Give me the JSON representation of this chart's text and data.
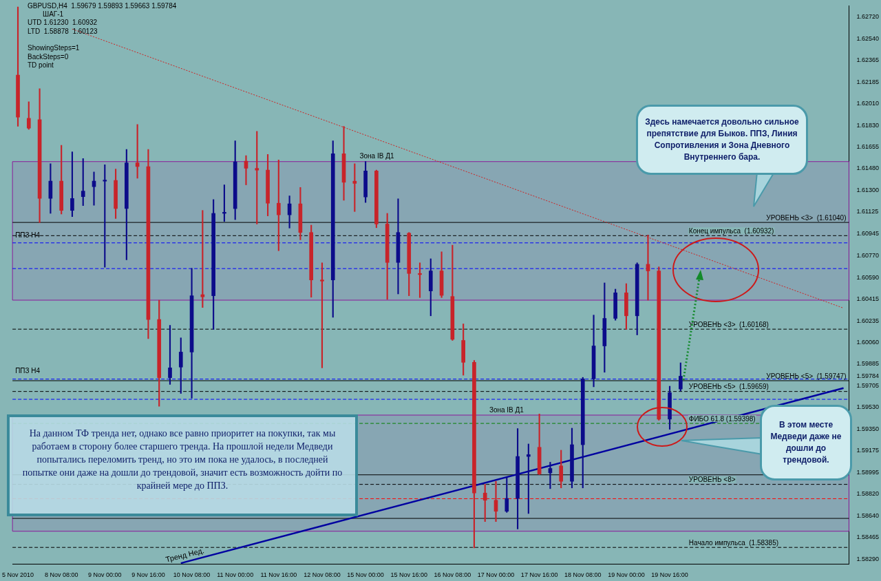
{
  "chart_data": {
    "type": "candlestick",
    "title": "GBPUSD,H4  1.59679 1.59893 1.59663 1.59784",
    "categories": [
      "5 Nov 2010",
      null,
      null,
      null,
      "8 Nov 08:00",
      null,
      null,
      null,
      "9 Nov 00:00",
      null,
      null,
      null,
      "9 Nov 16:00",
      null,
      null,
      null,
      "10 Nov 08:00",
      null,
      null,
      null,
      "11 Nov 00:00",
      null,
      null,
      null,
      "11 Nov 16:00",
      null,
      null,
      null,
      "12 Nov 08:00",
      null,
      null,
      null,
      "15 Nov 00:00",
      null,
      null,
      null,
      "15 Nov 16:00",
      null,
      null,
      null,
      "16 Nov 08:00",
      null,
      null,
      null,
      "17 Nov 00:00",
      null,
      null,
      null,
      "17 Nov 16:00",
      null,
      null,
      null,
      "18 Nov 08:00",
      null,
      null,
      null,
      "19 Nov 00:00",
      null,
      null,
      null,
      "19 Nov 16:00",
      null,
      null,
      null,
      null,
      null,
      null,
      null,
      null,
      null,
      null,
      null,
      null,
      null,
      null,
      null,
      null
    ],
    "ohlc": [
      [
        1.62244,
        1.628,
        1.61825,
        1.619
      ],
      [
        1.61891,
        1.62026,
        1.61801,
        1.6181
      ],
      [
        1.61879,
        1.62133,
        1.61039,
        1.61236
      ],
      [
        1.61236,
        1.6152,
        1.61114,
        1.61377
      ],
      [
        1.61377,
        1.6167,
        1.61108,
        1.61138
      ],
      [
        1.61138,
        1.61616,
        1.61087,
        1.61236
      ],
      [
        1.61251,
        1.61562,
        1.61177,
        1.61296
      ],
      [
        1.61332,
        1.61452,
        1.6118,
        1.61377
      ],
      [
        1.61377,
        1.61511,
        1.60674,
        1.61386
      ],
      [
        1.61383,
        1.61476,
        1.61072,
        1.61153
      ],
      [
        1.61153,
        1.61637,
        1.60734,
        1.61526
      ],
      [
        1.61526,
        1.6184,
        1.61401,
        1.61496
      ],
      [
        1.61496,
        1.61637,
        1.60091,
        1.60247
      ],
      [
        1.60247,
        1.60405,
        1.59538,
        1.59771
      ],
      [
        1.59771,
        1.60199,
        1.59717,
        1.59852
      ],
      [
        1.59858,
        1.60097,
        1.59643,
        1.59981
      ],
      [
        1.59981,
        1.60665,
        1.59604,
        1.60441
      ],
      [
        1.6045,
        1.61138,
        1.60345,
        1.60432
      ],
      [
        1.60441,
        1.61227,
        1.60166,
        1.61114
      ],
      [
        1.61114,
        1.61347,
        1.61048,
        1.61123
      ],
      [
        1.61153,
        1.61706,
        1.61063,
        1.61535
      ],
      [
        1.61541,
        1.61586,
        1.61347,
        1.61482
      ],
      [
        1.61482,
        1.61784,
        1.61027,
        1.61467
      ],
      [
        1.61467,
        1.61595,
        1.61093,
        1.61197
      ],
      [
        1.61197,
        1.6155,
        1.60809,
        1.61102
      ],
      [
        1.61102,
        1.61257,
        1.60994,
        1.61192
      ],
      [
        1.61192,
        1.61326,
        1.60898,
        1.60958
      ],
      [
        1.60958,
        1.61018,
        1.60429,
        1.6057
      ],
      [
        1.6057,
        1.6071,
        1.59852,
        1.60561
      ],
      [
        1.6057,
        1.61706,
        1.60265,
        1.61601
      ],
      [
        1.61601,
        1.61825,
        1.61221,
        1.61368
      ],
      [
        1.61377,
        1.6152,
        1.61129,
        1.61359
      ],
      [
        1.61248,
        1.61538,
        1.61203,
        1.61461
      ],
      [
        1.61461,
        1.61467,
        1.60997,
        1.61027
      ],
      [
        1.61027,
        1.61114,
        1.60411,
        1.60713
      ],
      [
        1.60713,
        1.61233,
        1.60456,
        1.60958
      ],
      [
        1.60952,
        1.60958,
        1.60441,
        1.60623
      ],
      [
        1.60623,
        1.6071,
        1.60426,
        1.60614
      ],
      [
        1.6048,
        1.60743,
        1.60277,
        1.60644
      ],
      [
        1.60644,
        1.608,
        1.60426,
        1.60444
      ],
      [
        1.60435,
        1.60854,
        1.60076,
        1.60085
      ],
      [
        1.60076,
        1.60211,
        1.59792,
        1.59897
      ],
      [
        1.59897,
        1.59912,
        1.58381,
        1.58829
      ],
      [
        1.58829,
        1.58901,
        1.58596,
        1.5877
      ],
      [
        1.5877,
        1.58925,
        1.58596,
        1.5868
      ],
      [
        1.5868,
        1.58955,
        1.58671,
        1.58785
      ],
      [
        1.58785,
        1.59356,
        1.58536,
        1.59128
      ],
      [
        1.59128,
        1.5923,
        1.58662,
        1.59143
      ],
      [
        1.59203,
        1.59475,
        1.58979,
        1.58985
      ],
      [
        1.58994,
        1.59081,
        1.58865,
        1.5903
      ],
      [
        1.59051,
        1.59179,
        1.58871,
        1.58925
      ],
      [
        1.58925,
        1.59359,
        1.58871,
        1.59224
      ],
      [
        1.59224,
        1.59774,
        1.58871,
        1.59762
      ],
      [
        1.59762,
        1.60283,
        1.59697,
        1.60031
      ],
      [
        1.60031,
        1.60546,
        1.59816,
        1.60256
      ],
      [
        1.60256,
        1.60495,
        1.60241,
        1.60465
      ],
      [
        1.60465,
        1.6054,
        1.60166,
        1.60277
      ],
      [
        1.60277,
        1.6071,
        1.60121,
        1.60698
      ],
      [
        1.60698,
        1.60937,
        1.60405,
        1.60644
      ],
      [
        1.60644,
        1.60677,
        1.59424,
        1.59433
      ],
      [
        1.59433,
        1.59702,
        1.5935,
        1.59649
      ],
      [
        1.59679,
        1.59893,
        1.59663,
        1.59784
      ],
      null,
      null,
      null,
      null,
      null,
      null,
      null,
      null,
      null,
      null,
      null,
      null,
      null,
      null,
      null
    ],
    "colors": [
      "#c8242a",
      "#c8242a",
      "#c8242a",
      "#0c0c8a",
      "#c8242a",
      "#0c0c8a",
      "#0c0c8a",
      "#0c0c8a",
      "#0c0c8a",
      "#c8242a",
      "#0c0c8a",
      "#c8242a",
      "#c8242a",
      "#c8242a",
      "#0c0c8a",
      "#0c0c8a",
      "#0c0c8a",
      "#c8242a",
      "#0c0c8a",
      "#0c0c8a",
      "#0c0c8a",
      "#c8242a",
      "#c8242a",
      "#c8242a",
      "#c8242a",
      "#0c0c8a",
      "#c8242a",
      "#c8242a",
      "#c8242a",
      "#0c0c8a",
      "#c8242a",
      "#c8242a",
      "#0c0c8a",
      "#c8242a",
      "#c8242a",
      "#0c0c8a",
      "#c8242a",
      "#c8242a",
      "#0c0c8a",
      "#c8242a",
      "#c8242a",
      "#c8242a",
      "#c8242a",
      "#c8242a",
      "#c8242a",
      "#0c0c8a",
      "#0c0c8a",
      "#0c0c8a",
      "#c8242a",
      "#0c0c8a",
      "#c8242a",
      "#0c0c8a",
      "#0c0c8a",
      "#0c0c8a",
      "#0c0c8a",
      "#0c0c8a",
      "#c8242a",
      "#0c0c8a",
      "#c8242a",
      "#c8242a",
      "#0c0c8a",
      "#0c0c8a",
      null,
      null,
      null,
      null,
      null,
      null,
      null,
      null,
      null,
      null,
      null,
      null,
      null,
      null,
      null
    ],
    "series": [
      {
        "type": "line",
        "color": "#0000a0",
        "line_style": "solid",
        "values": [
          null,
          null,
          null,
          null,
          null,
          null,
          null,
          null,
          null,
          null,
          null,
          null,
          null,
          null,
          null,
          1.58256,
          null,
          null,
          null,
          null,
          null,
          null,
          null,
          null,
          null,
          null,
          null,
          null,
          null,
          null,
          null,
          null,
          null,
          null,
          null,
          null,
          null,
          null,
          null,
          null,
          null,
          null,
          null,
          null,
          null,
          null,
          null,
          null,
          null,
          null,
          null,
          null,
          null,
          null,
          null,
          null,
          null,
          null,
          null,
          null,
          null,
          null,
          null,
          null,
          null,
          null,
          null,
          null,
          null,
          null,
          null,
          null,
          null,
          null,
          null,
          null,
          1.59687
        ]
      },
      {
        "type": "line",
        "color": "#d02020",
        "line_style": "dotted",
        "values": [
          null,
          null,
          null,
          null,
          null,
          1.6262,
          null,
          null,
          null,
          null,
          null,
          null,
          null,
          null,
          null,
          null,
          null,
          null,
          null,
          null,
          null,
          null,
          null,
          null,
          null,
          null,
          null,
          null,
          null,
          null,
          null,
          null,
          null,
          null,
          null,
          null,
          null,
          null,
          null,
          null,
          null,
          null,
          null,
          null,
          null,
          null,
          null,
          null,
          null,
          null,
          null,
          null,
          null,
          null,
          null,
          null,
          null,
          null,
          null,
          null,
          null,
          null,
          null,
          null,
          null,
          null,
          null,
          null,
          null,
          null,
          null,
          null,
          null,
          null,
          null,
          null,
          1.6034
        ]
      }
    ],
    "ylim": [
      1.5825,
      1.6281
    ],
    "yticks": [
      {
        "value": 1.6272,
        "label": "1.62720"
      },
      {
        "value": 1.6254,
        "label": "1.62540"
      },
      {
        "value": 1.62365,
        "label": "1.62365"
      },
      {
        "value": 1.62185,
        "label": "1.62185"
      },
      {
        "value": 1.6201,
        "label": "1.62010"
      },
      {
        "value": 1.6183,
        "label": "1.61830"
      },
      {
        "value": 1.61655,
        "label": "1.61655"
      },
      {
        "value": 1.6148,
        "label": "1.61480"
      },
      {
        "value": 1.613,
        "label": "1.61300"
      },
      {
        "value": 1.61125,
        "label": "1.61125"
      },
      {
        "value": 1.60945,
        "label": "1.60945"
      },
      {
        "value": 1.6077,
        "label": "1.60770"
      },
      {
        "value": 1.6059,
        "label": "1.60590"
      },
      {
        "value": 1.60415,
        "label": "1.60415"
      },
      {
        "value": 1.60235,
        "label": "1.60235"
      },
      {
        "value": 1.6006,
        "label": "1.60060"
      },
      {
        "value": 1.59885,
        "label": "1.59885"
      },
      {
        "value": 1.59784,
        "label": "1.59784"
      },
      {
        "value": 1.59705,
        "label": "1.59705"
      },
      {
        "value": 1.5953,
        "label": "1.59530"
      },
      {
        "value": 1.5935,
        "label": "1.59350"
      },
      {
        "value": 1.59175,
        "label": "1.59175"
      },
      {
        "value": 1.58995,
        "label": "1.58995"
      },
      {
        "value": 1.5882,
        "label": "1.58820"
      },
      {
        "value": 1.5864,
        "label": "1.58640"
      },
      {
        "value": 1.58465,
        "label": "1.58465"
      },
      {
        "value": 1.5829,
        "label": "1.58290"
      }
    ],
    "grid": false,
    "legend": false,
    "ref_lines": [
      {
        "axis": "y",
        "value": 1.6104,
        "label": "УРОВЕНЬ <3>  (1.61040)",
        "color": "#000000",
        "line_style": "solid"
      },
      {
        "axis": "y",
        "value": 1.60932,
        "label": "Конец импульса  (1.60932)",
        "color": "#000000",
        "line_style": "dashed"
      },
      {
        "axis": "y",
        "value": 1.60873,
        "label": "ППЗ Н4",
        "color": "#0000ff",
        "line_style": "dashed"
      },
      {
        "axis": "y",
        "value": 1.60663,
        "color": "#0000ff",
        "line_style": "dashed"
      },
      {
        "axis": "y",
        "value": 1.60168,
        "label": "УРОВЕНЬ <3>  (1.60168)",
        "color": "#000000",
        "line_style": "dashed"
      },
      {
        "axis": "y",
        "value": 1.5976,
        "label": "ППЗ Н4",
        "color": "#0000ff",
        "line_style": "dashed"
      },
      {
        "axis": "y",
        "value": 1.59747,
        "label": "УРОВЕНЬ <5>  (1.59747)",
        "color": "#000000",
        "line_style": "solid"
      },
      {
        "axis": "y",
        "value": 1.59659,
        "label": "УРОВЕНЬ <5>  (1.59659)",
        "color": "#000000",
        "line_style": "dashed"
      },
      {
        "axis": "y",
        "value": 1.59595,
        "color": "#0000ff",
        "line_style": "dashed"
      },
      {
        "axis": "y",
        "value": 1.59398,
        "label": "ФИБО 61.8 (1.59398)",
        "color": "#008000",
        "line_style": "dashed"
      },
      {
        "axis": "y",
        "value": 1.58978,
        "color": "#000000",
        "line_style": "solid"
      },
      {
        "axis": "y",
        "value": 1.589,
        "label": "УРОВЕНЬ <8>",
        "color": "#000000",
        "line_style": "dashed"
      },
      {
        "axis": "y",
        "value": 1.58783,
        "color": "#ff0000",
        "line_style": "dashed"
      },
      {
        "axis": "y",
        "value": 1.58622,
        "color": "#000000",
        "line_style": "solid"
      },
      {
        "axis": "y",
        "value": 1.58385,
        "label": "Начало импульса  (1.58385)",
        "color": "#000000",
        "line_style": "dashed"
      }
    ],
    "bands": [
      {
        "axis": "y",
        "from": 1.60405,
        "to": 1.61537,
        "label": "Зона IB Д1",
        "color": "#8b1a9a"
      },
      {
        "axis": "y",
        "from": 1.58517,
        "to": 1.59466,
        "label": "Зона IB Д1",
        "color": "#8b1a9a"
      }
    ],
    "annotations": [
      "ШАГ-1",
      "UTD 1.61230  1.60932",
      "LTD  1.58878  1.60123",
      "ShowingSteps=1",
      "BackSteps=0",
      "TD point",
      "Здесь намечается довольно сильное препятствие для Быков. ППЗ, Линия Сопротивления и Зона Дневного Внутреннего бара.",
      "В этом месте Медведи даже не дошли до трендовой.",
      "На данном ТФ тренда нет, однако все равно приоритет на покупки, так мы работаем в сторону более старшего тренда. На прошлой недели Медведи попытались переломить тренд, но это им пока не удалось, в последней попытке они даже на дошли до трендовой, значит есть возможность дойти по крайней мере до ППЗ.",
      "Тренд Нед."
    ]
  }
}
